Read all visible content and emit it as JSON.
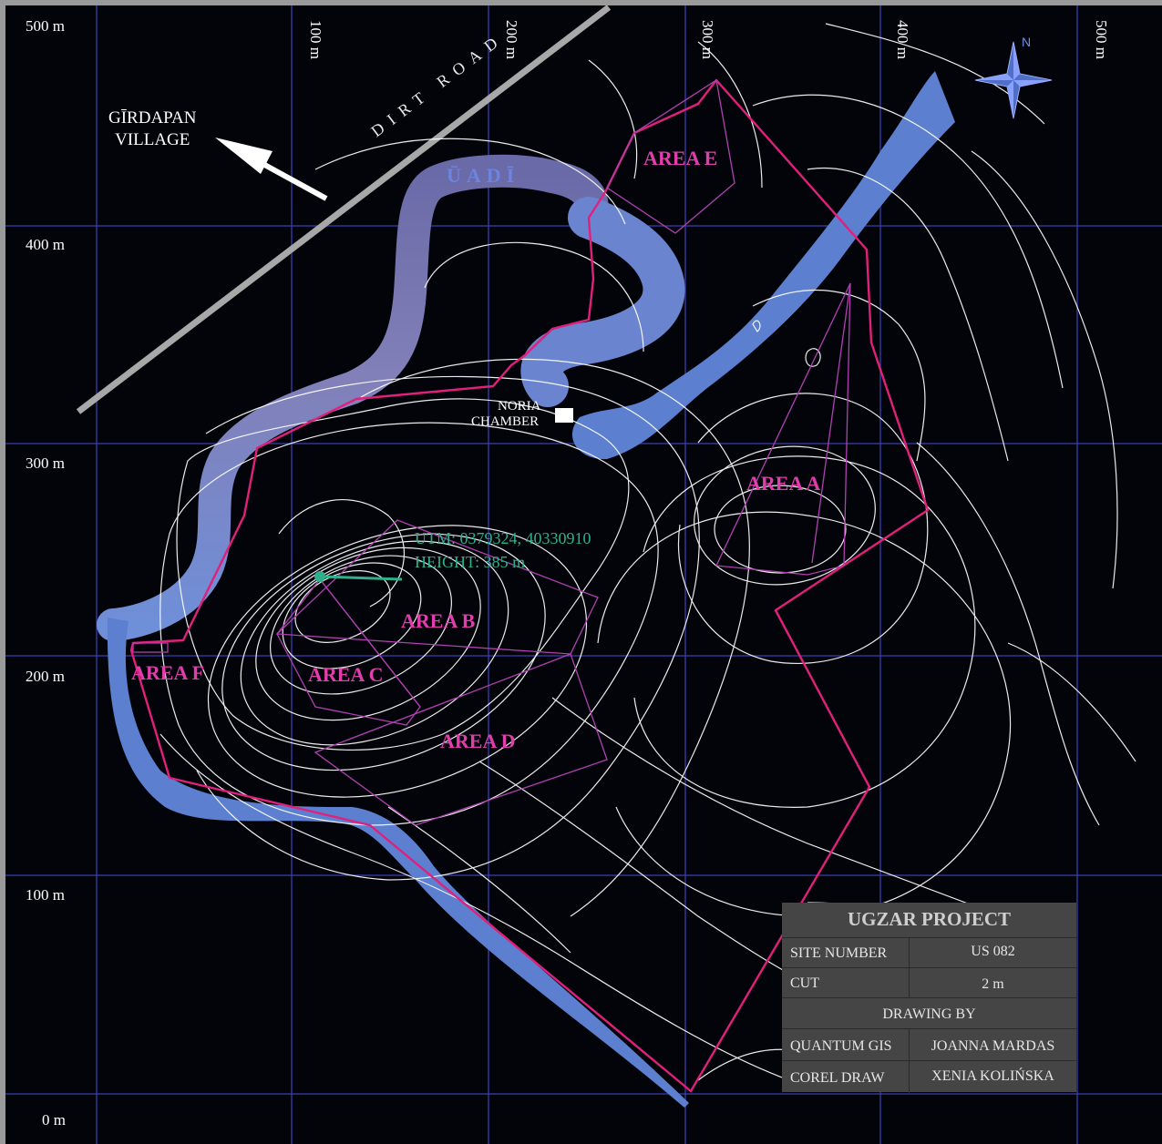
{
  "y_axis": {
    "labels": [
      "500 m",
      "400 m",
      "300 m",
      "200 m",
      "100 m",
      "0 m"
    ]
  },
  "x_axis": {
    "labels": [
      "100 m",
      "200 m",
      "300 m",
      "400 m",
      "500 m"
    ]
  },
  "labels": {
    "village_line1": "GĪRDAPAN",
    "village_line2": "VILLAGE",
    "road": "DIRT ROAD",
    "wadi": "ŪADĪ",
    "noria_line1": "NORIA",
    "noria_line2": "CHAMBER",
    "utm_line1": "UTM: 0379324, 40330910",
    "utm_line2": "HEIGHT: 385 m",
    "compass_n": "N"
  },
  "areas": [
    "AREA A",
    "AREA B",
    "AREA C",
    "AREA D",
    "AREA E",
    "AREA F"
  ],
  "info_box": {
    "title": "UGZAR PROJECT",
    "site_number_label": "SITE NUMBER",
    "site_number_value": "US 082",
    "cut_label": "CUT",
    "cut_value": "2 m",
    "drawing_by": "DRAWING BY",
    "quantum_label": "QUANTUM GIS",
    "quantum_value": "JOANNA MARDAS",
    "corel_label": "COREL DRAW",
    "corel_value": "XENIA KOLIŃSKA"
  },
  "colors": {
    "background": "#03040a",
    "grid": "#3a3fb0",
    "boundary": "#e0207a",
    "area_outline": "#b040b0",
    "river": "#5d7fd0",
    "wadi": "#7b79b8",
    "contour": "#ffffff",
    "utm_text": "#2fb08a",
    "road": "#a8a8a8"
  }
}
